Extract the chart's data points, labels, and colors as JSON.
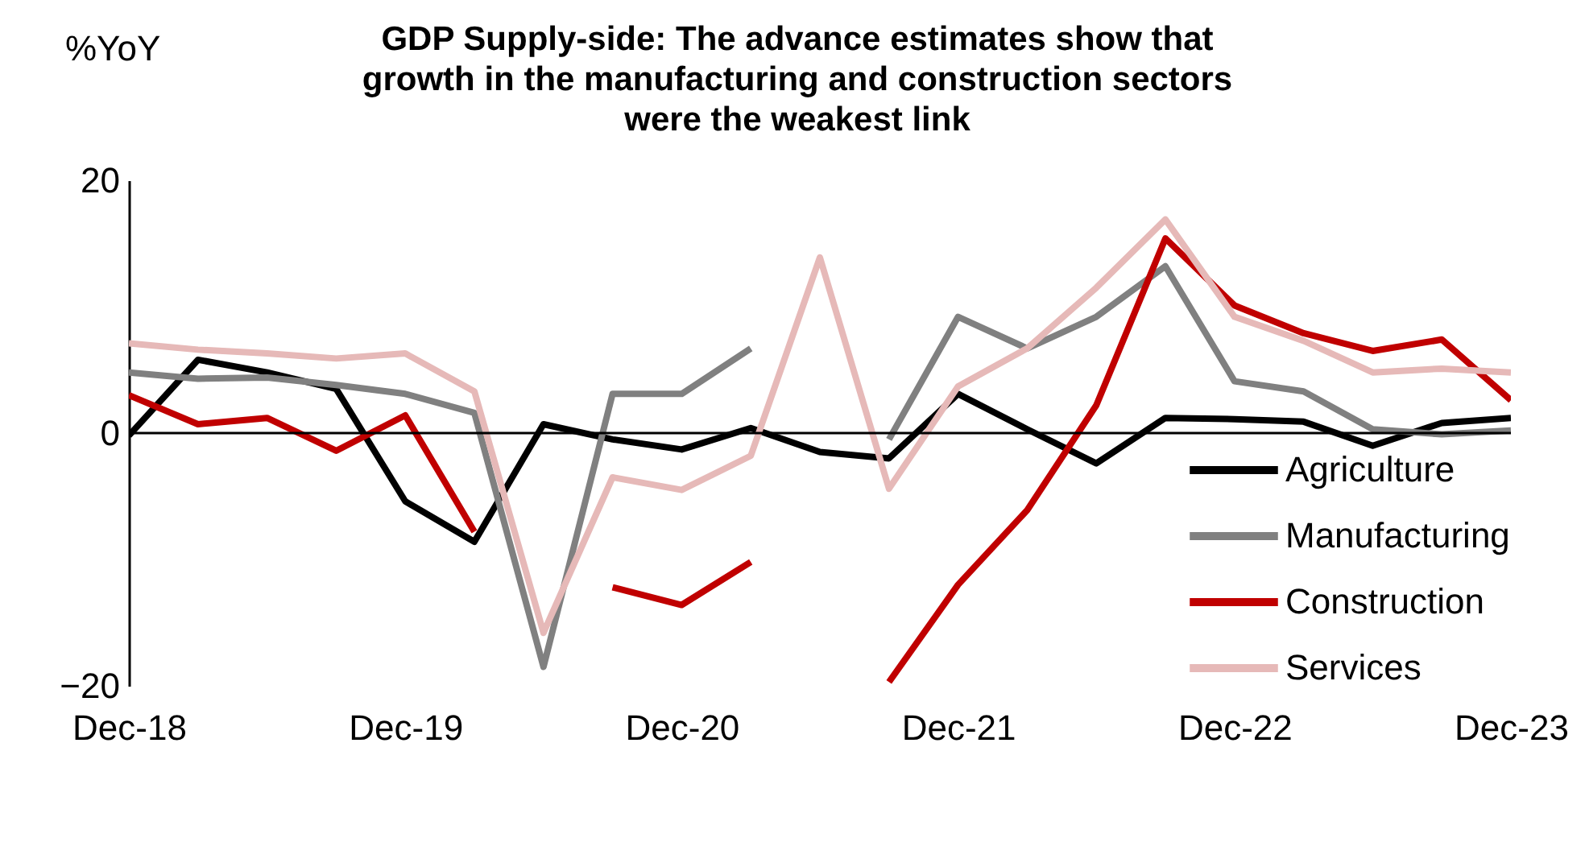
{
  "chart_data": {
    "type": "line",
    "title": "GDP Supply-side: The advance estimates show that\ngrowth in the manufacturing and construction sectors\nwere the weakest link",
    "ylabel": "%YoY",
    "categories": [
      "Dec-18",
      null,
      null,
      null,
      "Dec-19",
      null,
      null,
      null,
      "Dec-20",
      null,
      null,
      null,
      "Dec-21",
      null,
      null,
      null,
      "Dec-22",
      null,
      null,
      null,
      "Dec-23"
    ],
    "series": [
      {
        "name": "Agriculture",
        "color": "#000000",
        "values": [
          -0.2,
          5.8,
          4.8,
          3.5,
          -5.4,
          -8.6,
          0.7,
          -0.5,
          -1.3,
          0.4,
          -1.5,
          -2.0,
          3.1,
          0.3,
          -2.4,
          1.2,
          1.1,
          0.9,
          -1.0,
          0.8,
          1.2
        ]
      },
      {
        "name": "Manufacturing",
        "color": "#808080",
        "values": [
          4.8,
          4.3,
          4.4,
          3.8,
          3.1,
          1.6,
          -18.5,
          3.1,
          3.1,
          6.7,
          null,
          -0.5,
          9.2,
          6.7,
          9.2,
          13.2,
          4.1,
          3.3,
          0.3,
          -0.1,
          0.2
        ]
      },
      {
        "name": "Construction",
        "color": "#c00000",
        "values": [
          3.0,
          0.7,
          1.2,
          -1.4,
          1.4,
          -7.8,
          null,
          -12.2,
          -13.6,
          -10.2,
          null,
          -19.7,
          -12.0,
          -6.1,
          2.2,
          15.4,
          10.1,
          7.9,
          6.5,
          7.4,
          2.6
        ]
      },
      {
        "name": "Services",
        "color": "#e6b9b8",
        "values": [
          7.1,
          6.6,
          6.3,
          5.9,
          6.3,
          3.3,
          -15.8,
          -3.5,
          -4.5,
          -1.8,
          13.9,
          -4.4,
          3.7,
          6.7,
          11.5,
          16.9,
          9.2,
          7.3,
          4.8,
          5.1,
          4.8
        ]
      }
    ],
    "ylim": [
      -20,
      20
    ],
    "yticks": [
      -20,
      0,
      20
    ],
    "ref_lines": [
      {
        "axis": "y",
        "value": 0,
        "color": "#000000"
      }
    ],
    "grid": false,
    "legend": "bottom right",
    "line_style": "solid",
    "marker": "none"
  }
}
